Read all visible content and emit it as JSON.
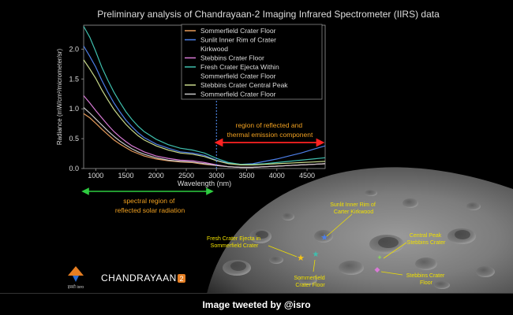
{
  "chart_data": {
    "type": "line",
    "title": "Preliminary analysis of Chandrayaan-2 Imaging Infrared Spectrometer (IIRS) data",
    "xlabel": "Wavelength (nm)",
    "ylabel": "Radiance (mW/cm²/micrometer/sr)",
    "xlim": [
      800,
      4800
    ],
    "ylim": [
      0,
      2.4
    ],
    "xticks": [
      1000,
      1500,
      2000,
      2500,
      3000,
      3500,
      4000,
      4500
    ],
    "yticks": [
      0.0,
      0.5,
      1.0,
      1.5,
      2.0
    ],
    "grid": false,
    "legend_position": "top-right",
    "x": [
      800,
      900,
      1000,
      1100,
      1200,
      1300,
      1400,
      1500,
      1600,
      1700,
      1800,
      2000,
      2200,
      2400,
      2600,
      2800,
      3000,
      3200,
      3400,
      3600,
      3800,
      4000,
      4200,
      4400,
      4600,
      4800
    ],
    "series": [
      {
        "name": "Sommerfield Crater Floor",
        "color": "#e59a5b",
        "values": [
          0.92,
          0.85,
          0.76,
          0.66,
          0.57,
          0.48,
          0.41,
          0.35,
          0.29,
          0.25,
          0.21,
          0.16,
          0.13,
          0.11,
          0.1,
          0.07,
          0.05,
          0.03,
          0.02,
          0.02,
          0.03,
          0.04,
          0.05,
          0.06,
          0.07,
          0.08
        ]
      },
      {
        "name": "Sunlit Inner Rim of Crater Kirkwood",
        "color": "#4d7fe8",
        "values": [
          2.05,
          1.88,
          1.7,
          1.48,
          1.28,
          1.1,
          0.95,
          0.81,
          0.7,
          0.6,
          0.52,
          0.41,
          0.34,
          0.28,
          0.26,
          0.22,
          0.14,
          0.09,
          0.07,
          0.08,
          0.12,
          0.16,
          0.21,
          0.26,
          0.32,
          0.38
        ]
      },
      {
        "name": "Stebbins Crater Floor",
        "color": "#d97ad6",
        "values": [
          1.22,
          1.1,
          0.97,
          0.85,
          0.73,
          0.62,
          0.53,
          0.45,
          0.38,
          0.33,
          0.28,
          0.21,
          0.17,
          0.14,
          0.13,
          0.1,
          0.06,
          0.03,
          0.02,
          0.02,
          0.03,
          0.04,
          0.05,
          0.06,
          0.07,
          0.08
        ]
      },
      {
        "name": "Fresh Crater Ejecta Within Sommerfield Crater Floor",
        "color": "#3fbfae",
        "values": [
          2.38,
          2.2,
          1.96,
          1.7,
          1.48,
          1.28,
          1.11,
          0.95,
          0.82,
          0.71,
          0.62,
          0.49,
          0.4,
          0.34,
          0.31,
          0.26,
          0.17,
          0.1,
          0.07,
          0.07,
          0.08,
          0.1,
          0.12,
          0.14,
          0.16,
          0.18
        ]
      },
      {
        "name": "Stebbins Crater Central Peak",
        "color": "#c8d98a",
        "values": [
          1.82,
          1.67,
          1.51,
          1.32,
          1.15,
          0.99,
          0.86,
          0.74,
          0.64,
          0.55,
          0.48,
          0.38,
          0.31,
          0.26,
          0.24,
          0.2,
          0.13,
          0.08,
          0.06,
          0.06,
          0.07,
          0.08,
          0.09,
          0.1,
          0.11,
          0.12
        ]
      },
      {
        "name": "Sommerfield Crater Floor",
        "color": "#c9c9c9",
        "values": [
          1.02,
          0.93,
          0.83,
          0.73,
          0.63,
          0.54,
          0.46,
          0.39,
          0.33,
          0.28,
          0.24,
          0.18,
          0.14,
          0.12,
          0.11,
          0.08,
          0.05,
          0.03,
          0.02,
          0.02,
          0.03,
          0.04,
          0.05,
          0.06,
          0.07,
          0.08
        ]
      }
    ],
    "annotations": {
      "thermal_region_label": [
        "region of reflected and",
        "thermal emission component"
      ],
      "solar_region_label": [
        "spectral region of",
        "reflected solar radiation"
      ]
    }
  },
  "colors": {
    "background": "#000000",
    "title_text": "#dddddd",
    "annotation_text": "#f0a020",
    "thermal_arrow": "#ff2222",
    "solar_arrow": "#2ecc40",
    "divider_line": "#4a7fd8"
  },
  "map_labels": {
    "kirkwood": [
      "Sunlit Inner Rim of",
      "Carter Kirkwood"
    ],
    "central_peak": [
      "Central Peak",
      "Stebbins Crater"
    ],
    "ejecta": [
      "Fresh Crater Ejecta in",
      "Sommerfield Crater"
    ],
    "sommerfield_floor": [
      "Sommerfield",
      "Crater Floor"
    ],
    "stebbins_floor": [
      "Stebbins Crater",
      "Floor"
    ]
  },
  "branding": {
    "agency": "इसरो isro",
    "mission_name": "CHANDRAYAAN",
    "mission_number": "2"
  },
  "credit": "Image tweeted by @isro"
}
